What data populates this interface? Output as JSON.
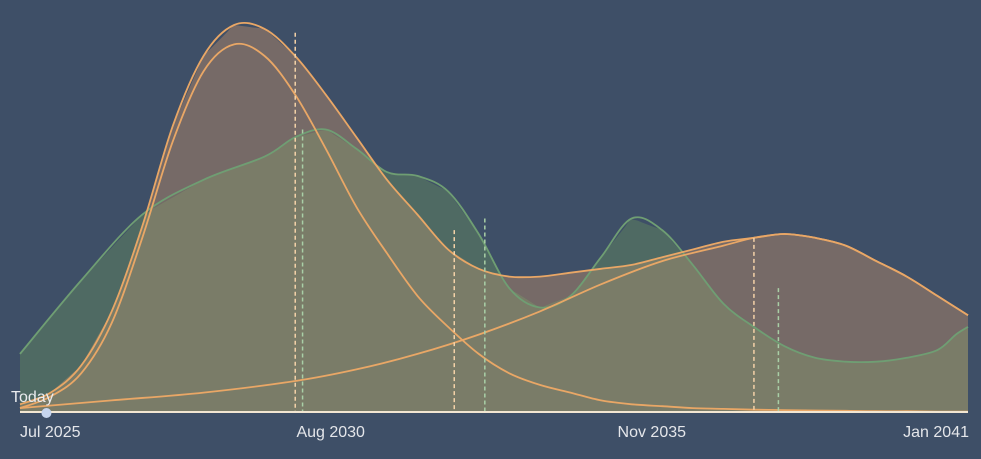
{
  "chart_data": {
    "type": "area",
    "title": "",
    "xlabel": "",
    "ylabel": "",
    "x_ticks": [
      {
        "label": "Jul 2025",
        "x": 2025.5
      },
      {
        "label": "Aug 2030",
        "x": 2030.58
      },
      {
        "label": "Nov 2035",
        "x": 2035.83
      },
      {
        "label": "Jan 2041",
        "x": 2041.0
      }
    ],
    "xlim": [
      2025.5,
      2041.0
    ],
    "ylim": [
      0,
      1.0
    ],
    "today": {
      "label": "Today",
      "x": 2025.72
    },
    "grid": false,
    "legend": "none",
    "colors": {
      "background": "#3e4f67",
      "green_line": "#6f9e73",
      "green_fill": "#4f6a63",
      "orange_line": "#e9a766",
      "orange_fill": "#766a67",
      "overlap_fill": "#7a7c68",
      "baseline": "#f2e6d2",
      "today_marker": "#c6d5ee"
    },
    "series": [
      {
        "name": "",
        "color": "green",
        "x": [
          2025.5,
          2026.5,
          2027.5,
          2028.5,
          2029.5,
          2030.0,
          2030.5,
          2031.0,
          2031.5,
          2032.0,
          2032.5,
          2033.0,
          2033.5,
          2034.0,
          2034.5,
          2035.0,
          2035.5,
          2036.0,
          2036.5,
          2037.0,
          2037.5,
          2038.0,
          2038.5,
          2039.0,
          2039.5,
          2040.0,
          2040.5,
          2040.8,
          2041.0
        ],
        "y": [
          0.15,
          0.34,
          0.51,
          0.6,
          0.66,
          0.71,
          0.73,
          0.68,
          0.62,
          0.61,
          0.57,
          0.46,
          0.32,
          0.27,
          0.3,
          0.4,
          0.5,
          0.47,
          0.38,
          0.28,
          0.22,
          0.17,
          0.14,
          0.13,
          0.13,
          0.14,
          0.16,
          0.2,
          0.22
        ]
      },
      {
        "name": "",
        "color": "orange",
        "x": [
          2025.5,
          2026.0,
          2026.5,
          2027.0,
          2027.5,
          2028.0,
          2028.5,
          2029.0,
          2029.5,
          2030.0,
          2030.5,
          2031.0,
          2031.5,
          2032.0,
          2032.5,
          2033.0,
          2033.5,
          2034.0,
          2034.5,
          2035.0,
          2035.5,
          2036.0,
          2036.5,
          2037.0,
          2037.5,
          2038.0,
          2038.5,
          2039.0,
          2039.5,
          2040.0,
          2040.5,
          2041.0
        ],
        "y": [
          0.02,
          0.05,
          0.12,
          0.26,
          0.48,
          0.74,
          0.92,
          1.0,
          0.99,
          0.92,
          0.82,
          0.71,
          0.6,
          0.51,
          0.42,
          0.37,
          0.35,
          0.35,
          0.36,
          0.37,
          0.38,
          0.4,
          0.42,
          0.44,
          0.45,
          0.46,
          0.45,
          0.43,
          0.39,
          0.35,
          0.3,
          0.25
        ]
      },
      {
        "name": "",
        "color": "orange",
        "x": [
          2025.5,
          2026.0,
          2026.5,
          2027.0,
          2027.5,
          2028.0,
          2028.5,
          2029.0,
          2029.5,
          2030.0,
          2030.5,
          2031.0,
          2031.5,
          2032.0,
          2032.5,
          2033.0,
          2033.5,
          2034.0,
          2034.5,
          2035.0,
          2035.5,
          2036.0,
          2036.5,
          2037.0,
          2037.5,
          2038.0,
          2038.5,
          2039.0,
          2039.5,
          2040.0,
          2040.5,
          2041.0
        ],
        "y": [
          0.01,
          0.04,
          0.1,
          0.23,
          0.45,
          0.7,
          0.88,
          0.95,
          0.92,
          0.82,
          0.68,
          0.53,
          0.41,
          0.3,
          0.22,
          0.15,
          0.1,
          0.07,
          0.05,
          0.03,
          0.02,
          0.015,
          0.01,
          0.008,
          0.006,
          0.005,
          0.004,
          0.003,
          0.002,
          0.002,
          0.001,
          0.001
        ]
      },
      {
        "name": "",
        "color": "orange",
        "x": [
          2025.5,
          2027.0,
          2028.5,
          2030.0,
          2031.0,
          2032.0,
          2033.0,
          2034.0,
          2035.0,
          2036.0,
          2037.0,
          2037.5,
          2038.0,
          2038.5,
          2039.0,
          2039.5,
          2040.0,
          2040.5,
          2041.0
        ],
        "y": [
          0.01,
          0.03,
          0.05,
          0.08,
          0.11,
          0.15,
          0.2,
          0.26,
          0.33,
          0.39,
          0.43,
          0.45,
          0.46,
          0.45,
          0.43,
          0.39,
          0.35,
          0.3,
          0.25
        ]
      }
    ],
    "markers": [
      {
        "color": "orange",
        "x": 2030.0,
        "y": 0.98
      },
      {
        "color": "green",
        "x": 2030.12,
        "y": 0.73
      },
      {
        "color": "orange",
        "x": 2032.6,
        "y": 0.47
      },
      {
        "color": "green",
        "x": 2033.1,
        "y": 0.5
      },
      {
        "color": "orange",
        "x": 2037.5,
        "y": 0.45
      },
      {
        "color": "green",
        "x": 2037.9,
        "y": 0.32
      }
    ]
  }
}
